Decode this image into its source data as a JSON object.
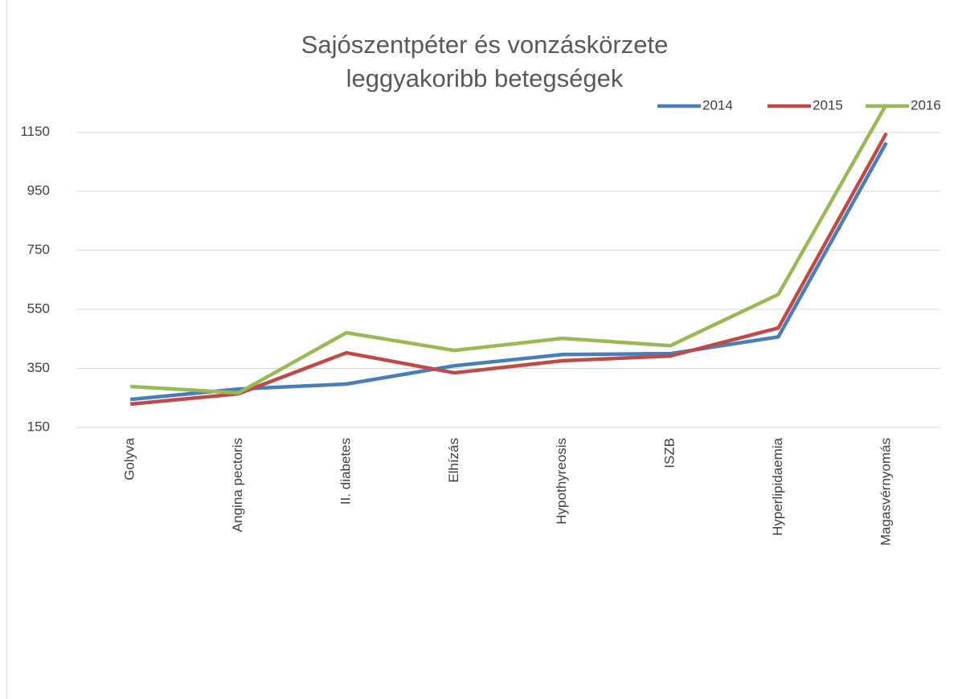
{
  "chart_data": {
    "type": "line",
    "title": [
      "Sajószentpéter és vonzáskörzete",
      "leggyakoribb betegségek"
    ],
    "categories": [
      "Golyva",
      "Angina pectoris",
      "II. diabetes",
      "Elhízás",
      "Hypothyreosis",
      "ISZB",
      "Hyperlipidaemia",
      "Magasvérnyomás"
    ],
    "series": [
      {
        "name": "2014",
        "color": "#4a7ebb",
        "values": [
          245,
          280,
          297,
          359,
          397,
          400,
          457,
          1115
        ]
      },
      {
        "name": "2015",
        "color": "#be4b48",
        "values": [
          229,
          264,
          403,
          335,
          376,
          392,
          487,
          1147
        ]
      },
      {
        "name": "2016",
        "color": "#98b954",
        "values": [
          289,
          267,
          471,
          411,
          452,
          427,
          601,
          1245
        ]
      }
    ],
    "ylim": [
      150,
      1250
    ],
    "yticks": [
      150,
      350,
      550,
      750,
      950,
      1150
    ],
    "grid": true,
    "legend": "top-right"
  }
}
